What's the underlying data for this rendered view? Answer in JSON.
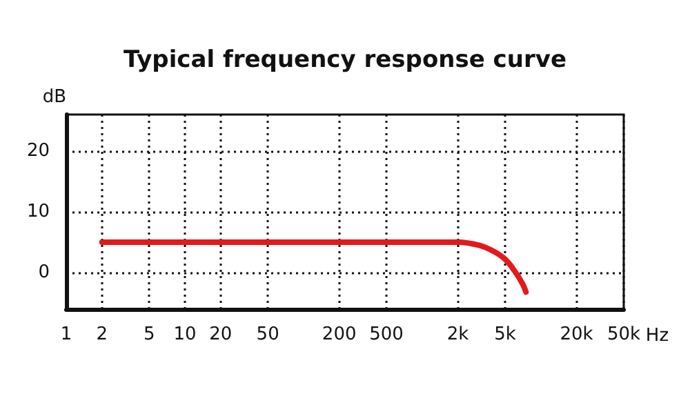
{
  "chart_data": {
    "type": "line",
    "title": "Typical frequency response curve",
    "ylabel": "dB",
    "x": [
      2,
      100,
      1000,
      2000,
      3000,
      4000,
      5000,
      6000,
      7000,
      7500
    ],
    "series": [
      {
        "color": "#e31a1c",
        "values": [
          5,
          5,
          5,
          5,
          4.5,
          3.5,
          2.2,
          0.3,
          -1.8,
          -3.2
        ]
      }
    ],
    "log": "x",
    "xlim": [
      1,
      50000
    ],
    "xticks": [
      1,
      2,
      5,
      10,
      20,
      50,
      200,
      500,
      {
        "value": 2000,
        "label": "2k"
      },
      {
        "value": 5000,
        "label": "5k"
      },
      {
        "value": 20000,
        "label": "20k"
      },
      {
        "value": 50000,
        "label": "50k"
      }
    ],
    "xlabel": "Hz",
    "ylim": [
      -6,
      26
    ],
    "yticks": [
      0,
      10,
      20
    ],
    "grid": true,
    "marker": "none",
    "line_style": "solid"
  }
}
